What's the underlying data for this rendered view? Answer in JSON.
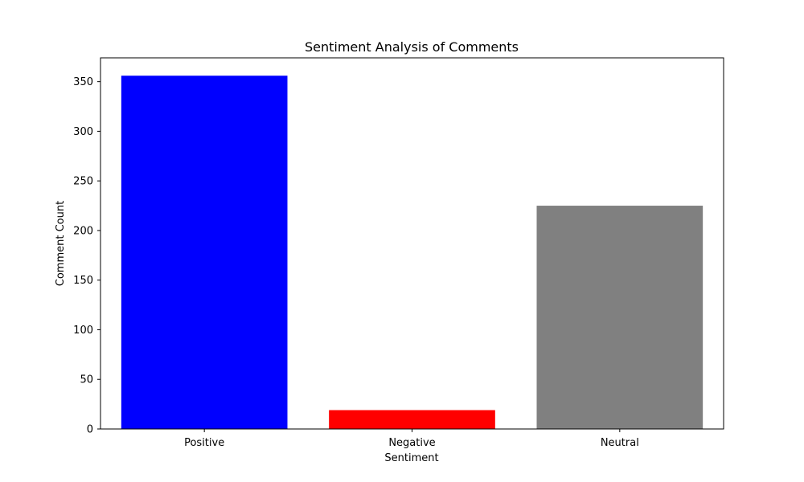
{
  "chart_data": {
    "type": "bar",
    "title": "Sentiment Analysis of Comments",
    "xlabel": "Sentiment",
    "ylabel": "Comment Count",
    "categories": [
      "Positive",
      "Negative",
      "Neutral"
    ],
    "values": [
      356,
      19,
      225
    ],
    "colors": [
      "#0000ff",
      "#ff0000",
      "#808080"
    ],
    "ylim": [
      0,
      374
    ],
    "yticks": [
      0,
      50,
      100,
      150,
      200,
      250,
      300,
      350
    ],
    "grid": false,
    "legend": "none"
  }
}
